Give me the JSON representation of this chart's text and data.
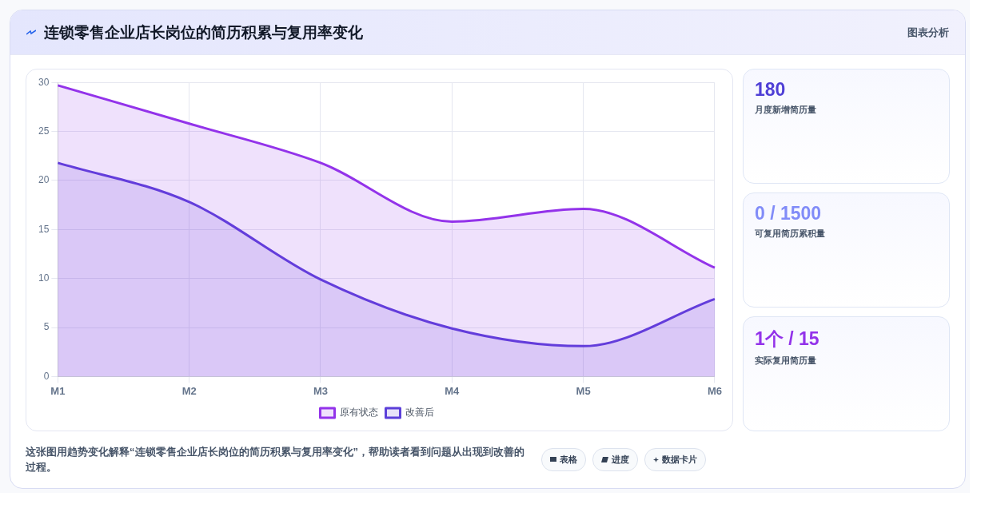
{
  "chart_data": {
    "type": "area",
    "title": "连锁零售企业店长岗位的简历积累与复用率变化",
    "subtitle": "图表分析",
    "categories": [
      "M1",
      "M2",
      "M3",
      "M4",
      "M5",
      "M6"
    ],
    "series": [
      {
        "name": "原有状态",
        "color": "#9333ea",
        "values": [
          29.7,
          25.8,
          21.8,
          15.8,
          17.1,
          11.1
        ]
      },
      {
        "name": "改善后",
        "color": "#5b3fd9",
        "values": [
          21.8,
          17.8,
          9.9,
          4.9,
          3.1,
          7.9
        ]
      }
    ],
    "ylim": [
      0,
      30
    ],
    "yticks": [
      0,
      5,
      10,
      15,
      20,
      25,
      30
    ],
    "grid": true,
    "legend": "bottom",
    "marker": "none",
    "line_style": "solid",
    "annotations": [
      "这张图用趋势变化解释“连锁零售企业店长岗位的简历积累与复用率变化”，帮助读者看到问题从出现到改善的过程。",
      "表格",
      "进度",
      "数据卡片",
      "180",
      "月度新增简历量",
      "0 / 1500",
      "可复用简历累积量",
      "1个 / 15",
      "实际复用简历量"
    ]
  }
}
